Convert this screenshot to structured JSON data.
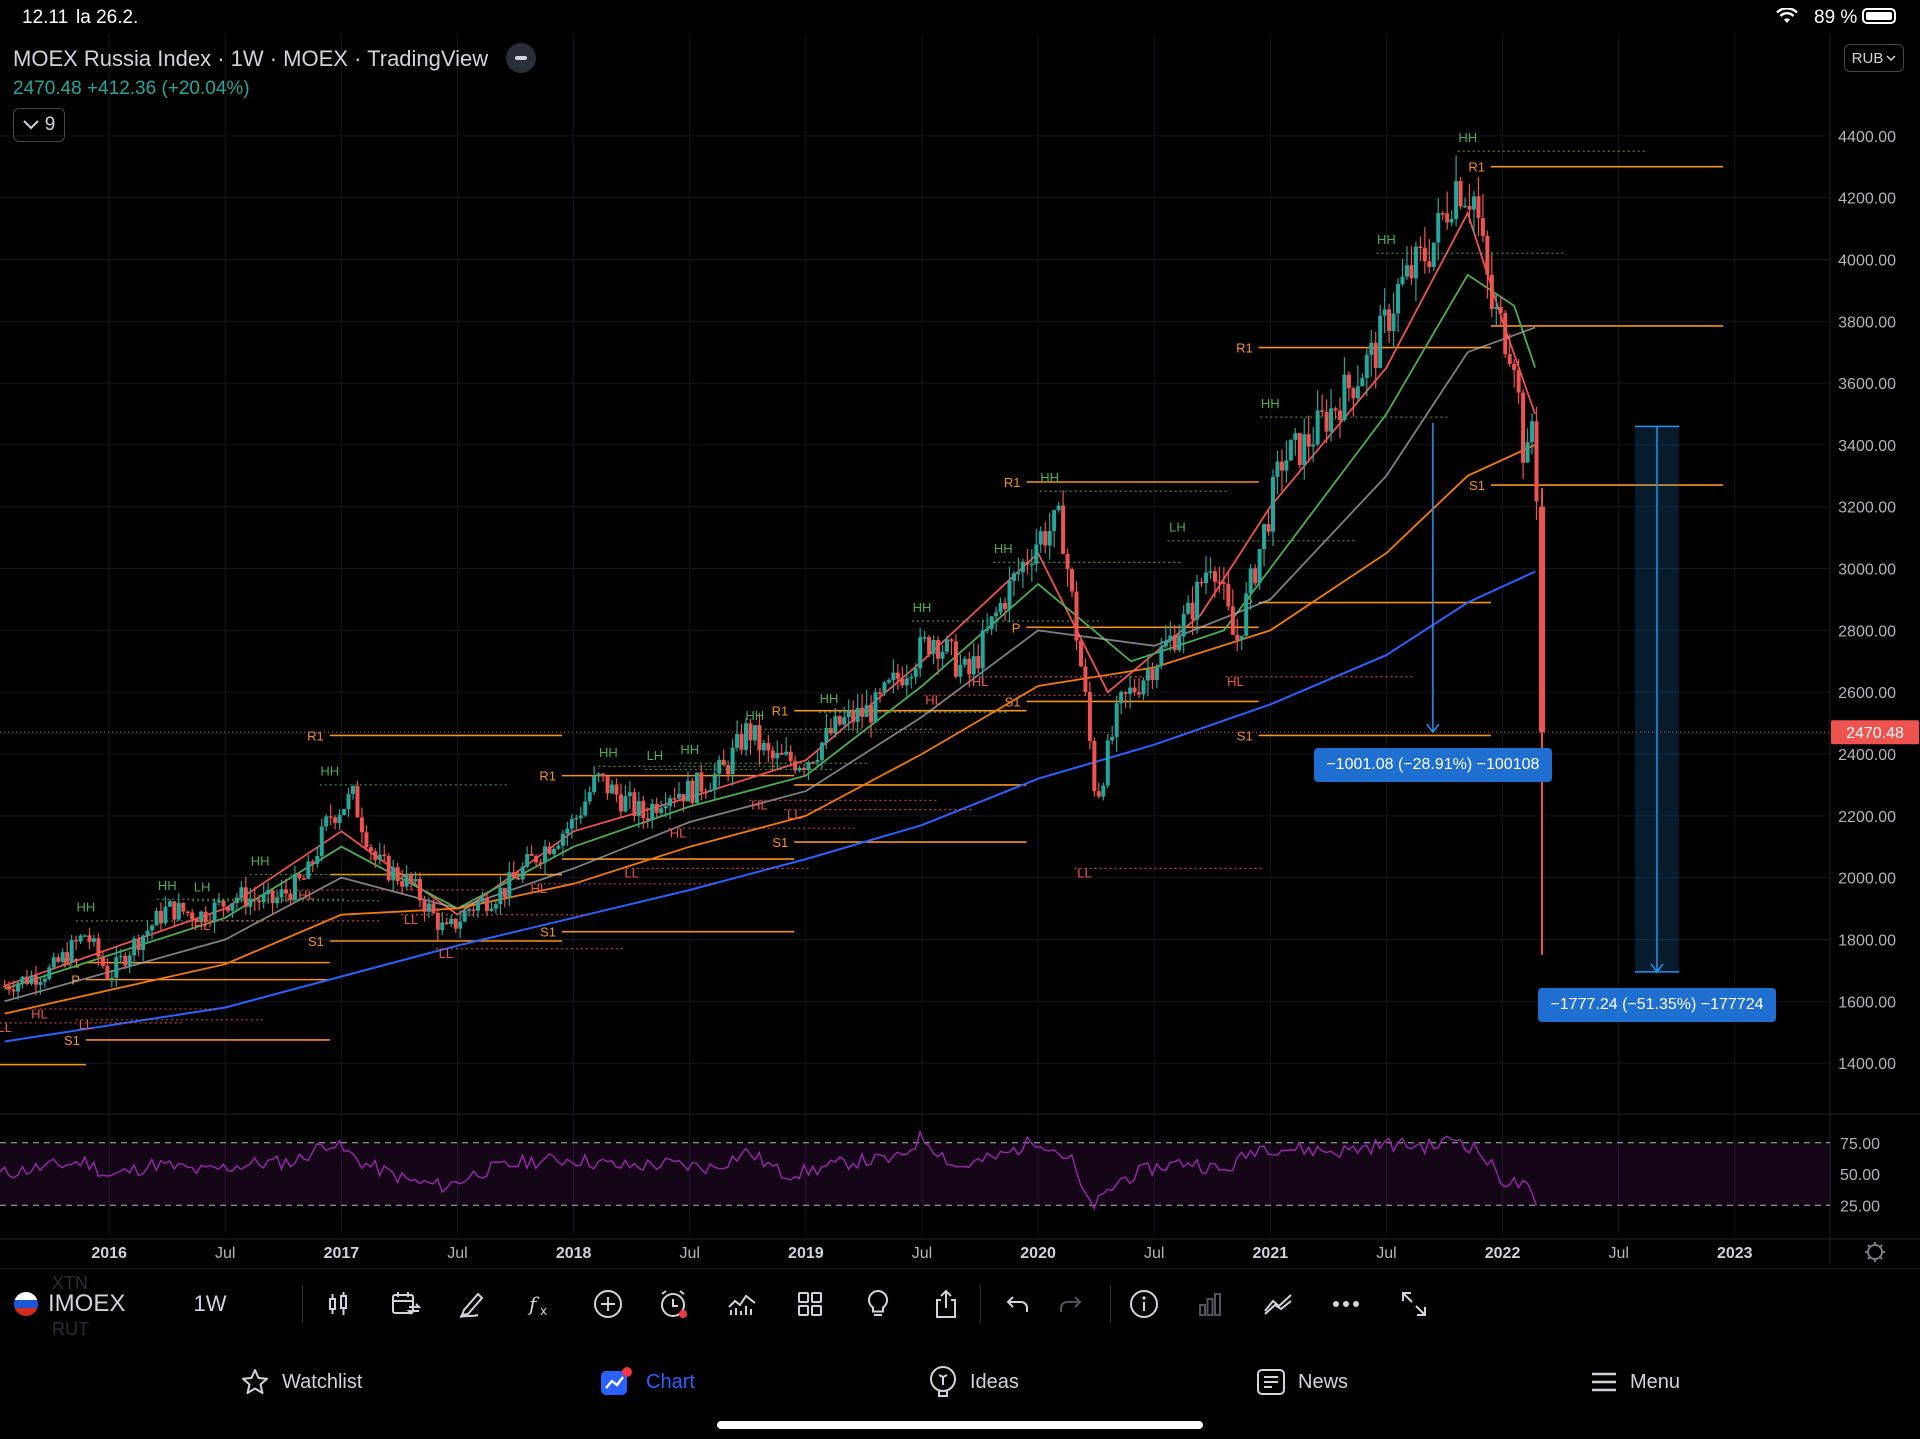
{
  "status_bar": {
    "time": "12.11",
    "date": "la 26.2.",
    "battery": "89 %"
  },
  "legend": {
    "title": "MOEX Russia Index · 1W · MOEX · TradingView",
    "price_line": "2470.48  +412.36 (+20.04%)",
    "indicators_count": "9"
  },
  "currency": "RUB",
  "price_badge": "2470.48",
  "measurements": [
    {
      "label": "−1001.08 (−28.91%) −100108"
    },
    {
      "label": "−1777.24 (−51.35%) −177724"
    }
  ],
  "colors": {
    "background": "#000000",
    "up": "#26a69a",
    "down": "#ef5350",
    "pivot": "#f7931a",
    "ma_fast": "#ef5350",
    "ma_mid": "#4caf50",
    "ma_slow": "#b2b5be",
    "ma_orange": "#f57c00",
    "ma_long": "#2962ff",
    "rsi": "#9c27b0",
    "measure": "#2196f3",
    "active_tab": "#2962ff"
  },
  "chart_data": {
    "type": "candlestick",
    "title": "MOEX Russia Index",
    "timeframe": "1W",
    "y_ticks": [
      "4400.00",
      "4200.00",
      "4000.00",
      "3800.00",
      "3600.00",
      "3400.00",
      "3200.00",
      "3000.00",
      "2800.00",
      "2600.00",
      "2400.00",
      "2200.00",
      "2000.00",
      "1800.00",
      "1600.00",
      "1400.00"
    ],
    "y_tick_values": [
      4400,
      4200,
      4000,
      3800,
      3600,
      3400,
      3200,
      3000,
      2800,
      2600,
      2400,
      2200,
      2000,
      1800,
      1600,
      1400
    ],
    "ylim": [
      1300,
      4600
    ],
    "x_ticks": [
      "2016",
      "Jul",
      "2017",
      "Jul",
      "2018",
      "Jul",
      "2019",
      "Jul",
      "2020",
      "Jul",
      "2021",
      "Jul",
      "2022",
      "Jul",
      "2023"
    ],
    "x_tick_years": [
      2016.0,
      2016.5,
      2017.0,
      2017.5,
      2018.0,
      2018.5,
      2019.0,
      2019.5,
      2020.0,
      2020.5,
      2021.0,
      2021.5,
      2022.0,
      2022.5,
      2023.0
    ],
    "xlim": [
      2015.53,
      2023.41
    ],
    "last_price": 2470.48,
    "price_path": [
      [
        2015.55,
        1650
      ],
      [
        2015.75,
        1700
      ],
      [
        2015.9,
        1820
      ],
      [
        2016.0,
        1680
      ],
      [
        2016.1,
        1780
      ],
      [
        2016.25,
        1900
      ],
      [
        2016.4,
        1880
      ],
      [
        2016.55,
        1940
      ],
      [
        2016.7,
        1920
      ],
      [
        2016.85,
        2000
      ],
      [
        2016.95,
        2200
      ],
      [
        2017.05,
        2260
      ],
      [
        2017.15,
        2050
      ],
      [
        2017.3,
        1980
      ],
      [
        2017.45,
        1820
      ],
      [
        2017.55,
        1900
      ],
      [
        2017.7,
        1960
      ],
      [
        2017.85,
        2080
      ],
      [
        2018.0,
        2180
      ],
      [
        2018.1,
        2320
      ],
      [
        2018.2,
        2260
      ],
      [
        2018.3,
        2200
      ],
      [
        2018.4,
        2280
      ],
      [
        2018.5,
        2280
      ],
      [
        2018.65,
        2350
      ],
      [
        2018.75,
        2480
      ],
      [
        2018.85,
        2380
      ],
      [
        2019.0,
        2380
      ],
      [
        2019.15,
        2500
      ],
      [
        2019.3,
        2550
      ],
      [
        2019.45,
        2700
      ],
      [
        2019.55,
        2780
      ],
      [
        2019.7,
        2650
      ],
      [
        2019.85,
        2900
      ],
      [
        2020.0,
        3100
      ],
      [
        2020.1,
        3150
      ],
      [
        2020.2,
        2600
      ],
      [
        2020.25,
        2250
      ],
      [
        2020.35,
        2550
      ],
      [
        2020.5,
        2700
      ],
      [
        2020.65,
        2850
      ],
      [
        2020.75,
        3050
      ],
      [
        2020.85,
        2750
      ],
      [
        2020.95,
        3050
      ],
      [
        2021.05,
        3350
      ],
      [
        2021.15,
        3400
      ],
      [
        2021.3,
        3550
      ],
      [
        2021.45,
        3700
      ],
      [
        2021.55,
        3900
      ],
      [
        2021.7,
        4050
      ],
      [
        2021.8,
        4250
      ],
      [
        2021.88,
        4200
      ],
      [
        2021.95,
        3850
      ],
      [
        2022.05,
        3700
      ],
      [
        2022.1,
        3300
      ],
      [
        2022.13,
        3500
      ],
      [
        2022.15,
        3200
      ],
      [
        2022.17,
        2470
      ]
    ],
    "crash_low": 1750,
    "series": [
      {
        "name": "MA fast",
        "color": "#ef5350",
        "points": [
          [
            2015.55,
            1650
          ],
          [
            2016.5,
            1900
          ],
          [
            2017.0,
            2150
          ],
          [
            2017.5,
            1880
          ],
          [
            2018.0,
            2150
          ],
          [
            2018.5,
            2260
          ],
          [
            2019.0,
            2380
          ],
          [
            2019.5,
            2700
          ],
          [
            2020.0,
            3050
          ],
          [
            2020.3,
            2600
          ],
          [
            2020.7,
            2850
          ],
          [
            2021.0,
            3200
          ],
          [
            2021.5,
            3650
          ],
          [
            2021.85,
            4150
          ],
          [
            2022.0,
            3800
          ],
          [
            2022.14,
            3500
          ]
        ]
      },
      {
        "name": "MA mid",
        "color": "#4caf50",
        "points": [
          [
            2015.55,
            1640
          ],
          [
            2016.5,
            1870
          ],
          [
            2017.0,
            2100
          ],
          [
            2017.5,
            1900
          ],
          [
            2018.0,
            2100
          ],
          [
            2018.5,
            2230
          ],
          [
            2019.0,
            2330
          ],
          [
            2019.5,
            2620
          ],
          [
            2020.0,
            2950
          ],
          [
            2020.4,
            2700
          ],
          [
            2020.8,
            2800
          ],
          [
            2021.0,
            3000
          ],
          [
            2021.5,
            3500
          ],
          [
            2021.85,
            3950
          ],
          [
            2022.05,
            3850
          ],
          [
            2022.14,
            3650
          ]
        ]
      },
      {
        "name": "MA slow",
        "color": "#b2b5be",
        "points": [
          [
            2015.55,
            1600
          ],
          [
            2016.5,
            1800
          ],
          [
            2017.0,
            2000
          ],
          [
            2017.5,
            1900
          ],
          [
            2018.0,
            2030
          ],
          [
            2018.5,
            2180
          ],
          [
            2019.0,
            2280
          ],
          [
            2019.5,
            2520
          ],
          [
            2020.0,
            2800
          ],
          [
            2020.5,
            2750
          ],
          [
            2021.0,
            2900
          ],
          [
            2021.5,
            3300
          ],
          [
            2021.85,
            3700
          ],
          [
            2022.14,
            3780
          ]
        ]
      },
      {
        "name": "MA orange",
        "color": "#f57c00",
        "points": [
          [
            2015.55,
            1560
          ],
          [
            2016.5,
            1720
          ],
          [
            2017.0,
            1880
          ],
          [
            2017.5,
            1900
          ],
          [
            2018.0,
            1980
          ],
          [
            2018.5,
            2100
          ],
          [
            2019.0,
            2200
          ],
          [
            2019.5,
            2400
          ],
          [
            2020.0,
            2620
          ],
          [
            2020.5,
            2680
          ],
          [
            2021.0,
            2800
          ],
          [
            2021.5,
            3050
          ],
          [
            2021.85,
            3300
          ],
          [
            2022.14,
            3400
          ]
        ]
      },
      {
        "name": "MA long",
        "color": "#2962ff",
        "points": [
          [
            2015.55,
            1470
          ],
          [
            2016.5,
            1580
          ],
          [
            2017.0,
            1680
          ],
          [
            2017.5,
            1780
          ],
          [
            2018.0,
            1870
          ],
          [
            2018.5,
            1960
          ],
          [
            2019.0,
            2060
          ],
          [
            2019.5,
            2170
          ],
          [
            2020.0,
            2320
          ],
          [
            2020.5,
            2430
          ],
          [
            2021.0,
            2560
          ],
          [
            2021.5,
            2720
          ],
          [
            2021.85,
            2890
          ],
          [
            2022.14,
            2990
          ]
        ]
      }
    ],
    "pivot_levels": [
      {
        "label": "R1",
        "y": 1725,
        "x0": 2015.9,
        "x1": 2016.95
      },
      {
        "label": "P",
        "y": 1670,
        "x0": 2015.9,
        "x1": 2016.95
      },
      {
        "label": "S1",
        "y": 1475,
        "x0": 2015.9,
        "x1": 2016.95
      },
      {
        "label": "",
        "y": 1395,
        "x0": 2015.53,
        "x1": 2015.9
      },
      {
        "label": "R1",
        "y": 2460,
        "x0": 2016.95,
        "x1": 2017.95
      },
      {
        "label": "",
        "y": 2010,
        "x0": 2016.95,
        "x1": 2017.95
      },
      {
        "label": "S1",
        "y": 1795,
        "x0": 2016.95,
        "x1": 2017.95
      },
      {
        "label": "R1",
        "y": 2330,
        "x0": 2017.95,
        "x1": 2018.95
      },
      {
        "label": "",
        "y": 2060,
        "x0": 2017.95,
        "x1": 2018.95
      },
      {
        "label": "S1",
        "y": 1825,
        "x0": 2017.95,
        "x1": 2018.95
      },
      {
        "label": "R1",
        "y": 2540,
        "x0": 2018.95,
        "x1": 2019.95
      },
      {
        "label": "",
        "y": 2300,
        "x0": 2018.95,
        "x1": 2019.95
      },
      {
        "label": "S1",
        "y": 2115,
        "x0": 2018.95,
        "x1": 2019.95
      },
      {
        "label": "R1",
        "y": 3280,
        "x0": 2019.95,
        "x1": 2020.95
      },
      {
        "label": "P",
        "y": 2810,
        "x0": 2019.95,
        "x1": 2020.95
      },
      {
        "label": "S1",
        "y": 2570,
        "x0": 2019.95,
        "x1": 2020.95
      },
      {
        "label": "R1",
        "y": 3715,
        "x0": 2020.95,
        "x1": 2021.95
      },
      {
        "label": "P",
        "y": 2890,
        "x0": 2020.95,
        "x1": 2021.95
      },
      {
        "label": "S1",
        "y": 2460,
        "x0": 2020.95,
        "x1": 2021.95
      },
      {
        "label": "R1",
        "y": 4300,
        "x0": 2021.95,
        "x1": 2022.95
      },
      {
        "label": "",
        "y": 3785,
        "x0": 2021.95,
        "x1": 2022.95
      },
      {
        "label": "S1",
        "y": 3270,
        "x0": 2021.95,
        "x1": 2022.95
      }
    ],
    "swing_labels": [
      {
        "text": "HH",
        "x": 2015.9,
        "y": 1890,
        "kind": "high"
      },
      {
        "text": "HH",
        "x": 2016.25,
        "y": 1960,
        "kind": "high"
      },
      {
        "text": "LH",
        "x": 2016.4,
        "y": 1955,
        "kind": "high"
      },
      {
        "text": "HH",
        "x": 2016.65,
        "y": 2040,
        "kind": "high"
      },
      {
        "text": "HH",
        "x": 2016.95,
        "y": 2330,
        "kind": "high"
      },
      {
        "text": "HH",
        "x": 2018.15,
        "y": 2390,
        "kind": "high"
      },
      {
        "text": "LH",
        "x": 2018.35,
        "y": 2380,
        "kind": "high"
      },
      {
        "text": "HH",
        "x": 2018.5,
        "y": 2400,
        "kind": "high"
      },
      {
        "text": "HH",
        "x": 2018.78,
        "y": 2510,
        "kind": "high"
      },
      {
        "text": "HH",
        "x": 2019.1,
        "y": 2565,
        "kind": "high"
      },
      {
        "text": "HH",
        "x": 2019.5,
        "y": 2860,
        "kind": "high"
      },
      {
        "text": "HH",
        "x": 2019.85,
        "y": 3050,
        "kind": "high"
      },
      {
        "text": "HH",
        "x": 2020.05,
        "y": 3280,
        "kind": "high"
      },
      {
        "text": "LH",
        "x": 2020.6,
        "y": 3120,
        "kind": "high"
      },
      {
        "text": "HH",
        "x": 2021.0,
        "y": 3520,
        "kind": "high"
      },
      {
        "text": "HH",
        "x": 2021.5,
        "y": 4050,
        "kind": "high"
      },
      {
        "text": "HH",
        "x": 2021.85,
        "y": 4380,
        "kind": "high"
      },
      {
        "text": "LL",
        "x": 2015.55,
        "y": 1500,
        "kind": "low"
      },
      {
        "text": "HL",
        "x": 2015.7,
        "y": 1545,
        "kind": "low"
      },
      {
        "text": "LL",
        "x": 2015.9,
        "y": 1510,
        "kind": "low"
      },
      {
        "text": "HL",
        "x": 2016.4,
        "y": 1830,
        "kind": "low"
      },
      {
        "text": "HL",
        "x": 2016.85,
        "y": 1930,
        "kind": "low"
      },
      {
        "text": "LL",
        "x": 2017.3,
        "y": 1850,
        "kind": "low"
      },
      {
        "text": "LL",
        "x": 2017.45,
        "y": 1740,
        "kind": "low"
      },
      {
        "text": "HL",
        "x": 2017.85,
        "y": 1950,
        "kind": "low"
      },
      {
        "text": "LL",
        "x": 2018.25,
        "y": 2000,
        "kind": "low"
      },
      {
        "text": "HL",
        "x": 2018.45,
        "y": 2130,
        "kind": "low"
      },
      {
        "text": "HL",
        "x": 2018.8,
        "y": 2220,
        "kind": "low"
      },
      {
        "text": "LL",
        "x": 2018.95,
        "y": 2190,
        "kind": "low"
      },
      {
        "text": "HL",
        "x": 2019.55,
        "y": 2560,
        "kind": "low"
      },
      {
        "text": "HL",
        "x": 2019.75,
        "y": 2620,
        "kind": "low"
      },
      {
        "text": "LL",
        "x": 2020.2,
        "y": 2000,
        "kind": "low"
      },
      {
        "text": "HL",
        "x": 2020.85,
        "y": 2620,
        "kind": "low"
      }
    ],
    "rsi": {
      "levels": [
        "75.00",
        "50.00",
        "25.00"
      ],
      "level_values": [
        75,
        50,
        25
      ],
      "ylim": [
        10,
        90
      ],
      "points": [
        [
          2015.53,
          50
        ],
        [
          2015.7,
          55
        ],
        [
          2015.9,
          60
        ],
        [
          2016.0,
          48
        ],
        [
          2016.2,
          58
        ],
        [
          2016.4,
          52
        ],
        [
          2016.6,
          58
        ],
        [
          2016.8,
          60
        ],
        [
          2016.95,
          76
        ],
        [
          2017.1,
          58
        ],
        [
          2017.3,
          44
        ],
        [
          2017.45,
          40
        ],
        [
          2017.6,
          52
        ],
        [
          2017.8,
          60
        ],
        [
          2018.0,
          62
        ],
        [
          2018.2,
          56
        ],
        [
          2018.4,
          58
        ],
        [
          2018.6,
          55
        ],
        [
          2018.75,
          68
        ],
        [
          2018.9,
          50
        ],
        [
          2019.0,
          52
        ],
        [
          2019.2,
          60
        ],
        [
          2019.4,
          62
        ],
        [
          2019.5,
          80
        ],
        [
          2019.65,
          55
        ],
        [
          2019.85,
          65
        ],
        [
          2020.0,
          78
        ],
        [
          2020.15,
          60
        ],
        [
          2020.2,
          30
        ],
        [
          2020.25,
          25
        ],
        [
          2020.35,
          45
        ],
        [
          2020.5,
          55
        ],
        [
          2020.65,
          60
        ],
        [
          2020.8,
          52
        ],
        [
          2020.95,
          72
        ],
        [
          2021.1,
          70
        ],
        [
          2021.3,
          68
        ],
        [
          2021.5,
          74
        ],
        [
          2021.7,
          72
        ],
        [
          2021.8,
          79
        ],
        [
          2021.9,
          68
        ],
        [
          2022.0,
          45
        ],
        [
          2022.1,
          40
        ],
        [
          2022.16,
          18
        ]
      ]
    }
  },
  "toolbar": {
    "symbol": "IMOEX",
    "interval": "1W",
    "ghost_symbols": [
      "XTN",
      "RUT"
    ]
  },
  "tabs": [
    {
      "label": "Watchlist",
      "icon": "star-icon"
    },
    {
      "label": "Chart",
      "icon": "chart-icon"
    },
    {
      "label": "Ideas",
      "icon": "lightbulb-icon"
    },
    {
      "label": "News",
      "icon": "news-icon"
    },
    {
      "label": "Menu",
      "icon": "menu-icon"
    }
  ]
}
